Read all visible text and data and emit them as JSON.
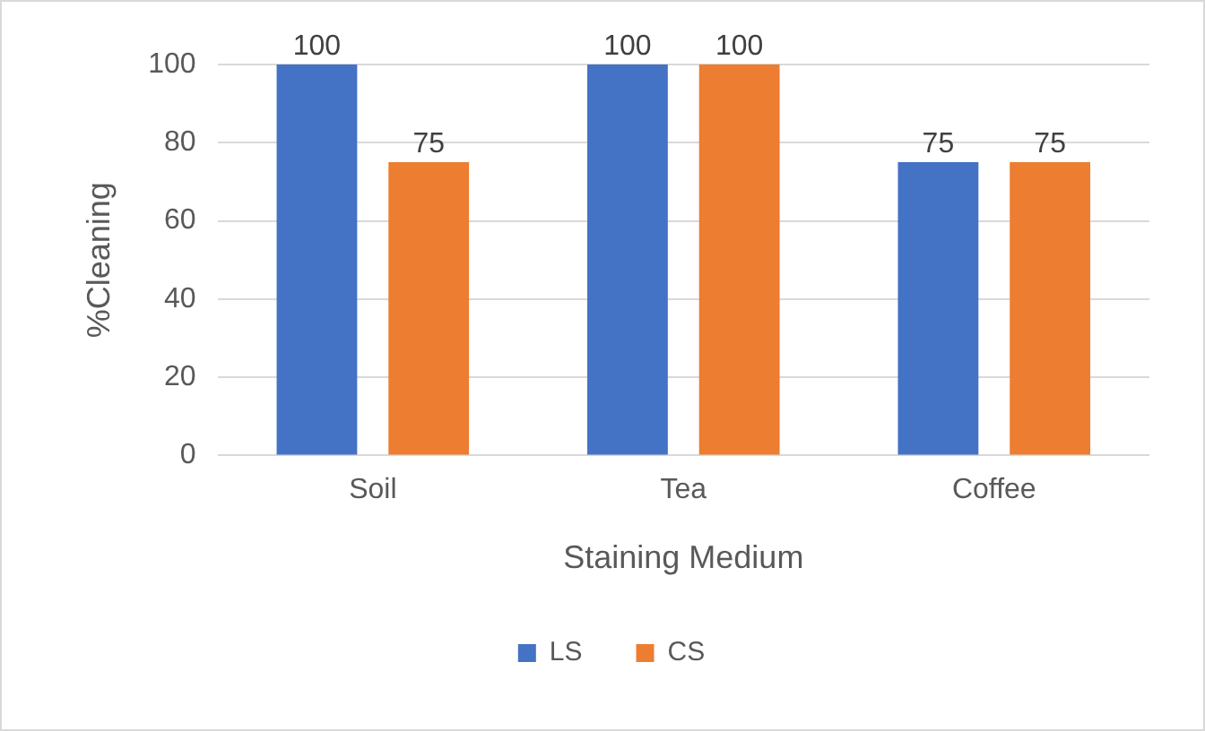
{
  "chart_data": {
    "type": "bar",
    "xlabel": "Staining Medium",
    "ylabel": "%Cleaning",
    "categories": [
      "Soil",
      "Tea",
      "Coffee"
    ],
    "series": [
      {
        "name": "LS",
        "color": "#4472c4",
        "values": [
          100,
          100,
          75
        ]
      },
      {
        "name": "CS",
        "color": "#ed7d31",
        "values": [
          75,
          100,
          75
        ]
      }
    ],
    "ylim": [
      0,
      100
    ],
    "yticks": [
      0,
      20,
      40,
      60,
      80,
      100
    ],
    "grid": "y",
    "legend": "bottom",
    "data_labels": true
  }
}
